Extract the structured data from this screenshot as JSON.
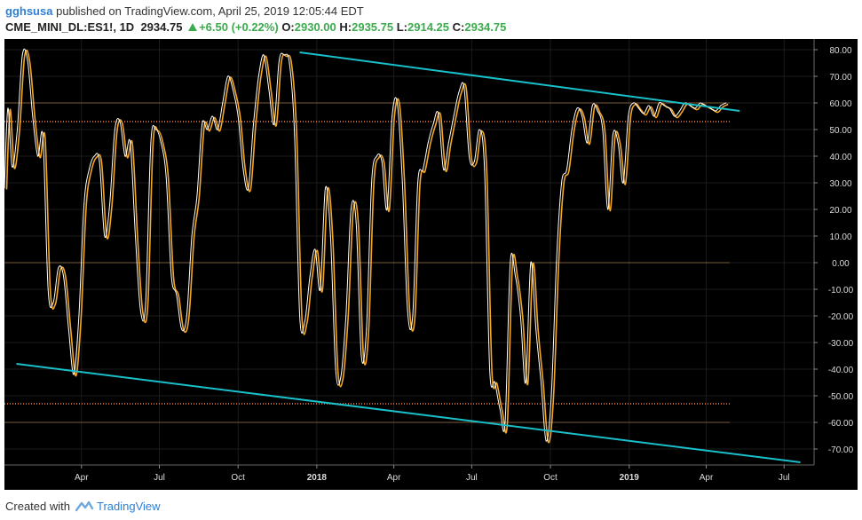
{
  "header": {
    "user": "gghsusa",
    "published_text": "published on TradingView.com, April 25, 2019 12:05:44 EDT",
    "symbol": "CME_MINI_DL:ES1!, 1D",
    "last": "2934.75",
    "change": "+6.50 (+0.22%)",
    "o_label": "O:",
    "o_value": "2930.00",
    "h_label": "H:",
    "h_value": "2935.75",
    "l_label": "L:",
    "l_value": "2914.25",
    "c_label": "C:",
    "c_value": "2934.75"
  },
  "footer": {
    "created_with": "Created with",
    "brand": "TradingView"
  },
  "colors": {
    "background": "#000000",
    "oscillator_fast": "#ffffff",
    "oscillator_slow": "#f5a623",
    "trendline": "#19bfc9",
    "level_line": "#7a5a3a",
    "dotted_level": "#c06030",
    "axis_text": "#dddddd"
  },
  "chart_data": {
    "type": "line",
    "y_ticks": [
      "80.00",
      "70.00",
      "60.00",
      "50.00",
      "40.00",
      "30.00",
      "20.00",
      "10.00",
      "0.00",
      "-10.00",
      "-20.00",
      "-30.00",
      "-40.00",
      "-50.00",
      "-60.00",
      "-70.00"
    ],
    "x_ticks": [
      "Apr",
      "Jul",
      "Oct",
      "2018",
      "Apr",
      "Jul",
      "Oct",
      "2019",
      "Apr",
      "Jul"
    ],
    "x_range": [
      "2017-01-01",
      "2019-08-05"
    ],
    "ylim": [
      -76,
      84
    ],
    "horizontal_levels": [
      {
        "value": 60,
        "style": "solid"
      },
      {
        "value": 53,
        "style": "dotted"
      },
      {
        "value": 0,
        "style": "solid"
      },
      {
        "value": -53,
        "style": "dotted"
      },
      {
        "value": -60,
        "style": "solid"
      }
    ],
    "trendlines": [
      {
        "from": [
          "2017-12-12",
          79
        ],
        "to": [
          "2019-05-10",
          57
        ]
      },
      {
        "from": [
          "2017-01-15",
          -38
        ],
        "to": [
          "2019-07-20",
          -75
        ]
      }
    ],
    "series": [
      {
        "x": [
          "2017-01-01",
          "2017-01-05",
          "2017-01-10",
          "2017-01-16",
          "2017-01-22",
          "2017-01-28",
          "2017-02-03",
          "2017-02-09",
          "2017-02-15",
          "2017-02-21",
          "2017-02-27",
          "2017-03-05",
          "2017-03-11",
          "2017-03-17",
          "2017-03-23",
          "2017-03-29",
          "2017-04-04",
          "2017-04-10",
          "2017-04-16",
          "2017-04-22",
          "2017-04-28",
          "2017-05-04",
          "2017-05-10",
          "2017-05-16",
          "2017-05-22",
          "2017-05-28",
          "2017-06-03",
          "2017-06-09",
          "2017-06-15",
          "2017-06-21",
          "2017-06-27",
          "2017-07-03",
          "2017-07-09",
          "2017-07-15",
          "2017-07-21",
          "2017-07-27",
          "2017-08-02",
          "2017-08-08",
          "2017-08-14",
          "2017-08-20",
          "2017-08-26",
          "2017-09-01",
          "2017-09-07",
          "2017-09-13",
          "2017-09-19",
          "2017-09-25",
          "2017-10-01",
          "2017-10-07",
          "2017-10-13",
          "2017-10-19",
          "2017-10-25",
          "2017-10-31",
          "2017-11-06",
          "2017-11-12",
          "2017-11-18",
          "2017-11-24",
          "2017-11-30",
          "2017-12-06",
          "2017-12-12",
          "2017-12-18",
          "2017-12-24",
          "2017-12-30",
          "2018-01-05",
          "2018-01-11",
          "2018-01-17",
          "2018-01-23",
          "2018-01-29",
          "2018-02-04",
          "2018-02-10",
          "2018-02-16",
          "2018-02-22",
          "2018-02-28",
          "2018-03-06",
          "2018-03-12",
          "2018-03-18",
          "2018-03-24",
          "2018-03-30",
          "2018-04-05",
          "2018-04-11",
          "2018-04-17",
          "2018-04-23",
          "2018-04-29",
          "2018-05-05",
          "2018-05-11",
          "2018-05-17",
          "2018-05-23",
          "2018-05-29",
          "2018-06-04",
          "2018-06-10",
          "2018-06-16",
          "2018-06-22",
          "2018-06-28",
          "2018-07-04",
          "2018-07-10",
          "2018-07-16",
          "2018-07-22",
          "2018-07-28",
          "2018-08-03",
          "2018-08-09",
          "2018-08-15",
          "2018-08-21",
          "2018-08-27",
          "2018-09-02",
          "2018-09-08",
          "2018-09-14",
          "2018-09-20",
          "2018-09-26",
          "2018-10-02",
          "2018-10-08",
          "2018-10-14",
          "2018-10-20",
          "2018-10-26",
          "2018-11-01",
          "2018-11-07",
          "2018-11-13",
          "2018-11-19",
          "2018-11-25",
          "2018-12-01",
          "2018-12-07",
          "2018-12-13",
          "2018-12-19",
          "2018-12-25",
          "2018-12-31",
          "2019-01-06",
          "2019-01-12",
          "2019-01-18",
          "2019-01-24",
          "2019-01-30",
          "2019-02-05",
          "2019-02-11",
          "2019-02-17",
          "2019-02-23",
          "2019-03-01",
          "2019-03-07",
          "2019-03-13",
          "2019-03-19",
          "2019-03-25",
          "2019-03-31",
          "2019-04-06",
          "2019-04-12",
          "2019-04-18",
          "2019-04-24"
        ],
        "values": [
          28,
          58,
          36,
          50,
          78,
          76,
          55,
          40,
          47,
          -10,
          -15,
          -2,
          -5,
          -25,
          -42,
          -20,
          22,
          35,
          40,
          38,
          10,
          22,
          50,
          53,
          40,
          45,
          10,
          -18,
          -15,
          45,
          50,
          45,
          32,
          -5,
          -12,
          -25,
          -20,
          10,
          25,
          52,
          50,
          55,
          50,
          60,
          70,
          65,
          55,
          35,
          28,
          52,
          70,
          78,
          65,
          52,
          76,
          78,
          75,
          48,
          -20,
          -22,
          -5,
          5,
          -10,
          28,
          10,
          -40,
          -43,
          -20,
          20,
          15,
          -35,
          -25,
          30,
          40,
          38,
          20,
          55,
          60,
          30,
          -18,
          -20,
          30,
          35,
          45,
          52,
          56,
          35,
          45,
          55,
          64,
          66,
          40,
          38,
          50,
          35,
          -40,
          -45,
          -55,
          -60,
          0,
          -5,
          -20,
          -45,
          0,
          -25,
          -45,
          -67,
          -50,
          0,
          30,
          35,
          50,
          58,
          55,
          45,
          59,
          57,
          50,
          20,
          48,
          45,
          30,
          55,
          60,
          58,
          56,
          59,
          55,
          60,
          59,
          58,
          55,
          57,
          60,
          59,
          58,
          60,
          59,
          58,
          57,
          59,
          60
        ],
        "name": ""
      }
    ]
  }
}
